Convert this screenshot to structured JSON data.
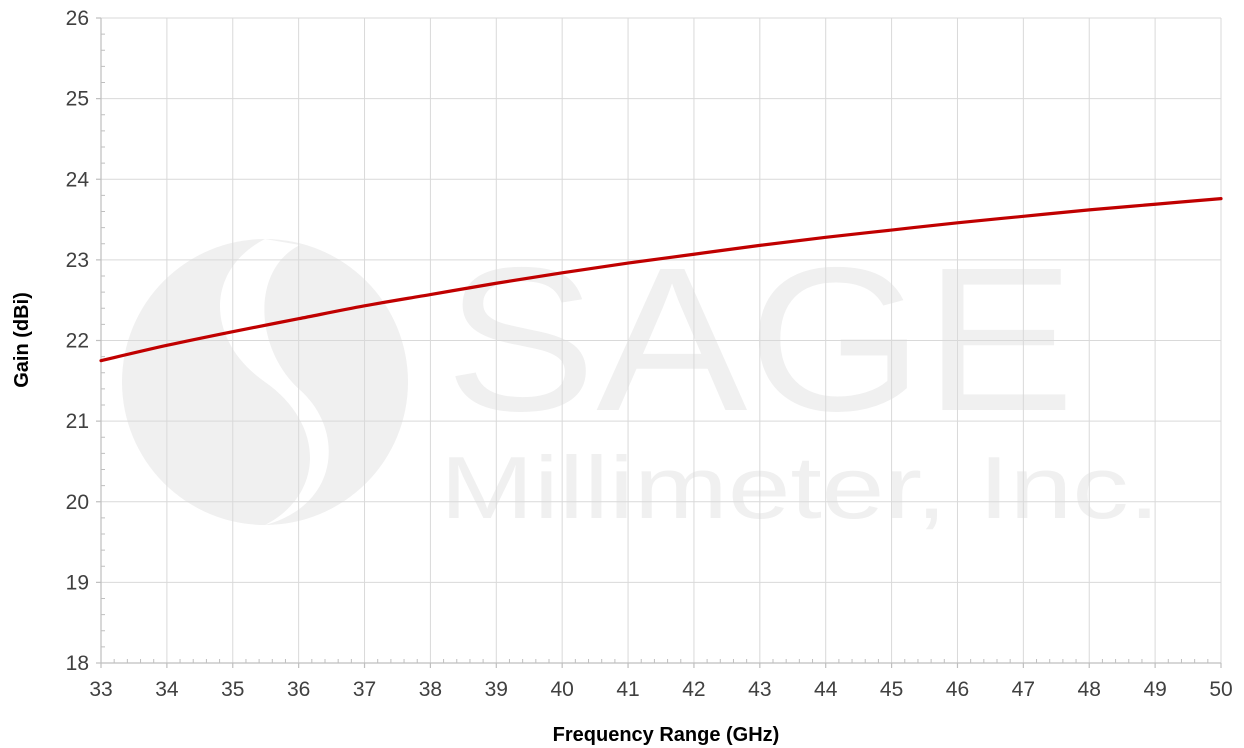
{
  "watermark": {
    "company": "SAGE",
    "subtitle": "Millimeter, Inc."
  },
  "colors": {
    "series": "#C00000",
    "grid": "#d9d9d9",
    "axis": "#bfbfbf",
    "watermark": "#f0f0f0"
  },
  "chart_data": {
    "type": "line",
    "title": "",
    "xlabel": "Frequency Range (GHz)",
    "ylabel": "Gain (dBi)",
    "xlim": [
      33,
      50
    ],
    "ylim": [
      18,
      26
    ],
    "xticks": [
      33,
      34,
      35,
      36,
      37,
      38,
      39,
      40,
      41,
      42,
      43,
      44,
      45,
      46,
      47,
      48,
      49,
      50
    ],
    "yticks": [
      18,
      19,
      20,
      21,
      22,
      23,
      24,
      25,
      26
    ],
    "grid": true,
    "legend": "none",
    "series": [
      {
        "x": [
          33,
          34,
          35,
          36,
          37,
          38,
          39,
          40,
          41,
          42,
          43,
          44,
          45,
          46,
          47,
          48,
          49,
          50
        ],
        "values": [
          21.75,
          21.94,
          22.11,
          22.27,
          22.43,
          22.57,
          22.71,
          22.84,
          22.96,
          23.07,
          23.18,
          23.28,
          23.37,
          23.46,
          23.54,
          23.62,
          23.69,
          23.76
        ]
      }
    ]
  }
}
